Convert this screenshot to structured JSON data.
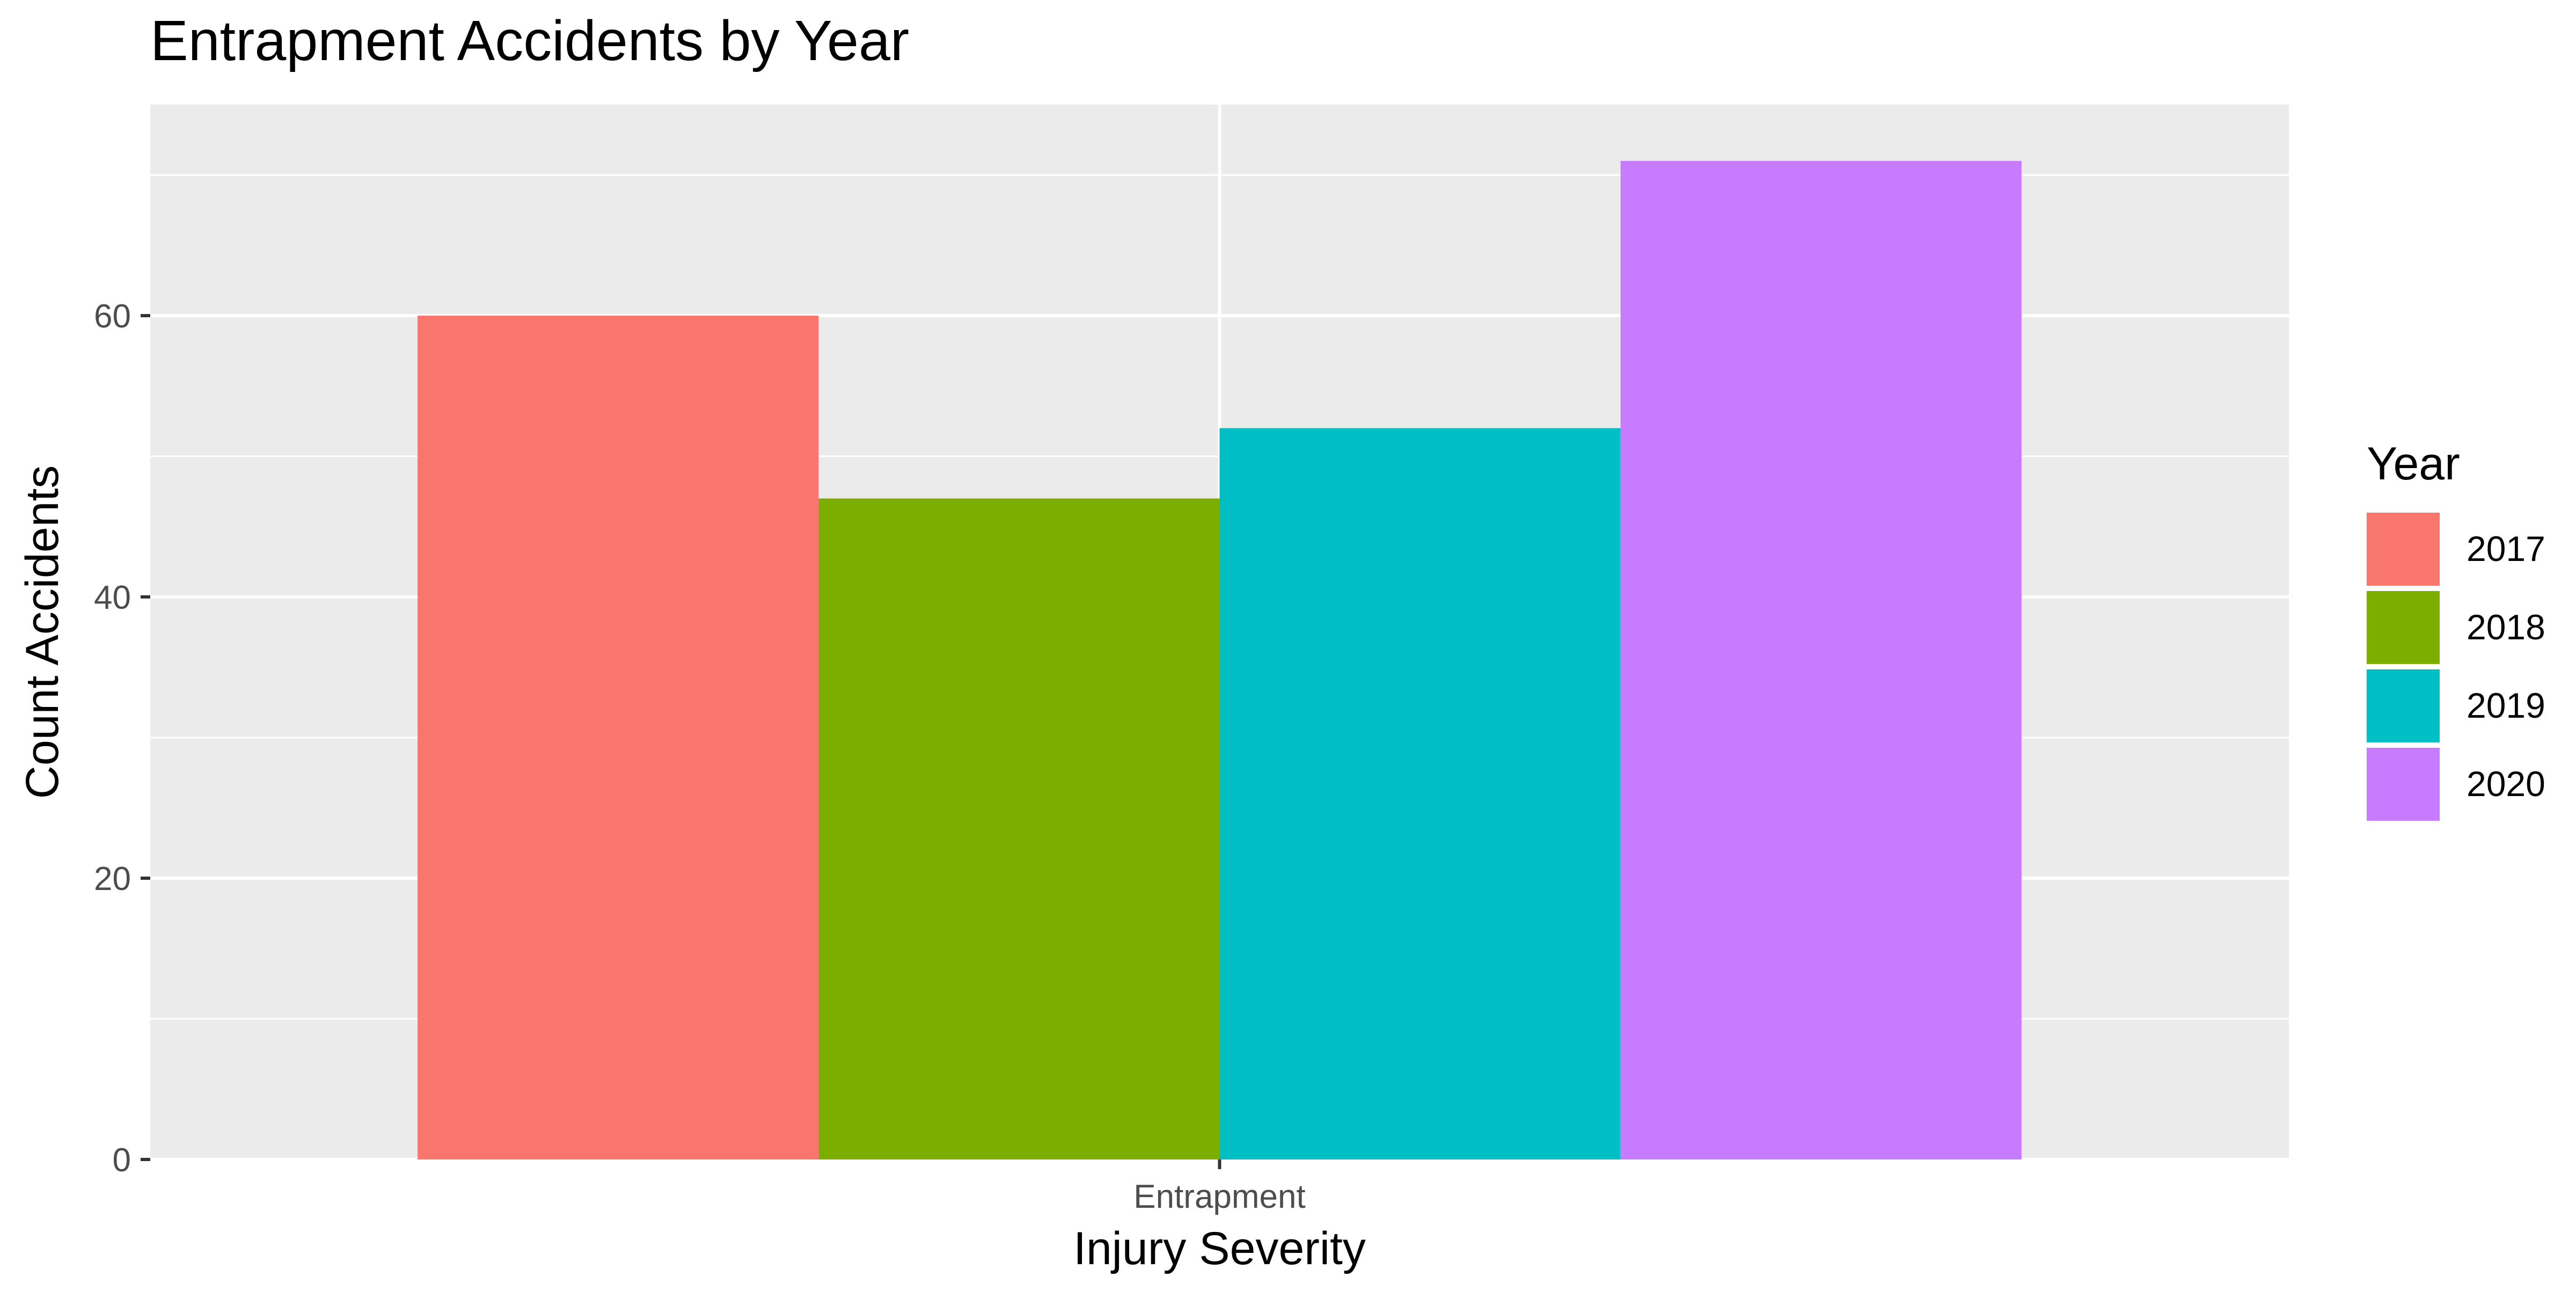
{
  "chart_data": {
    "type": "bar",
    "title": "Entrapment Accidents by Year",
    "xlabel": "Injury Severity",
    "ylabel": "Count Accidents",
    "categories": [
      "Entrapment"
    ],
    "series": [
      {
        "name": "2017",
        "values": [
          60
        ],
        "color": "#F8766D"
      },
      {
        "name": "2018",
        "values": [
          47
        ],
        "color": "#7CAE00"
      },
      {
        "name": "2019",
        "values": [
          52
        ],
        "color": "#00BFC4"
      },
      {
        "name": "2020",
        "values": [
          71
        ],
        "color": "#C77CFF"
      }
    ],
    "ylim": [
      0,
      75
    ],
    "y_ticks": [
      0,
      20,
      40,
      60
    ],
    "grid": true,
    "legend": {
      "title": "Year",
      "position": "right"
    },
    "colors": {
      "panel_background": "#EBEBEB",
      "grid": "#FFFFFF",
      "axis_text": "#4D4D4D"
    }
  }
}
